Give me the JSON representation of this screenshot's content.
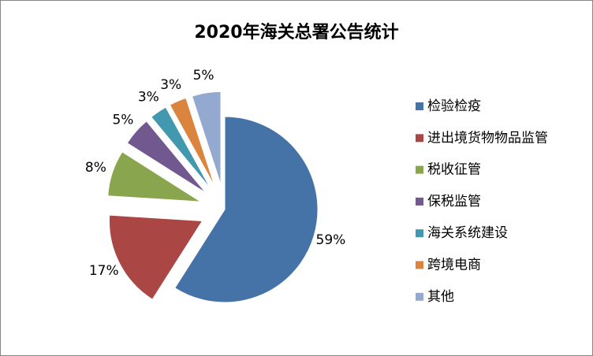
{
  "chart_data": {
    "type": "pie",
    "title": "2020年海关总署公告统计",
    "categories": [
      "检验检疫",
      "进出境货物物品监管",
      "税收征管",
      "保税监管",
      "海关系统建设",
      "跨境电商",
      "其他"
    ],
    "values": [
      59,
      17,
      8,
      5,
      3,
      3,
      5
    ],
    "value_labels": [
      "59%",
      "17%",
      "8%",
      "5%",
      "3%",
      "3%",
      "5%"
    ],
    "colors": [
      "#4572a7",
      "#aa4643",
      "#89a54e",
      "#71588f",
      "#4198af",
      "#db843d",
      "#93a9cf"
    ],
    "legend": "right"
  }
}
